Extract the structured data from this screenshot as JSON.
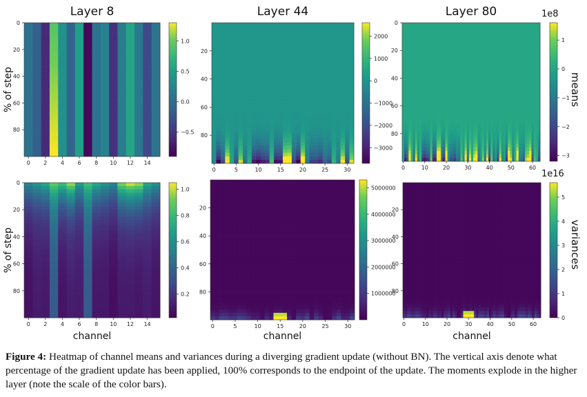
{
  "chart_data": [
    {
      "type": "heatmap",
      "title": "Layer 8",
      "xlabel": "",
      "ylabel": "% of step",
      "row_label": "",
      "channels": 16,
      "xticks": [
        0,
        2,
        4,
        6,
        8,
        10,
        12,
        14
      ],
      "yticks": [
        0,
        20,
        40,
        60,
        80
      ],
      "colorbar": {
        "ticks": [
          -0.5,
          0.0,
          0.5,
          1.0
        ],
        "labels": [
          "−0.5",
          "0.0",
          "0.5",
          "1.0"
        ],
        "range": [
          -0.9,
          1.3
        ],
        "scale_label": ""
      },
      "channel_values": [
        0.05,
        -0.15,
        -0.6,
        1.3,
        0.35,
        -0.1,
        0.5,
        -0.85,
        0.05,
        0.2,
        -0.55,
        0.15,
        0.55,
        0.1,
        -0.35,
        0.05
      ],
      "pattern": "constant-over-step"
    },
    {
      "type": "heatmap",
      "title": "Layer 44",
      "xlabel": "",
      "ylabel": "",
      "row_label": "",
      "channels": 32,
      "xticks": [
        0,
        5,
        10,
        15,
        20,
        25,
        30
      ],
      "yticks": [
        20,
        40,
        60,
        80
      ],
      "colorbar": {
        "ticks": [
          -3000,
          -2000,
          -1000,
          0,
          1000,
          2000
        ],
        "labels": [
          "−3000",
          "−2000",
          "−1000",
          "0",
          "1000",
          "2000"
        ],
        "range": [
          -3700,
          2600
        ],
        "scale_label": ""
      },
      "pattern": "near-zero-then-diverging-at-end"
    },
    {
      "type": "heatmap",
      "title": "Layer 80",
      "xlabel": "",
      "ylabel": "",
      "row_label": "means",
      "channels": 64,
      "xticks": [
        0,
        10,
        20,
        30,
        40,
        50,
        60
      ],
      "yticks": [
        0,
        20,
        40,
        60,
        80
      ],
      "colorbar": {
        "ticks": [
          -3,
          -2,
          -1,
          0,
          1
        ],
        "labels": [
          "−3",
          "−2",
          "−1",
          "0",
          "1"
        ],
        "range": [
          -3.2,
          1.6
        ],
        "scale_label": "1e8"
      },
      "pattern": "near-zero-then-diverging-at-end"
    },
    {
      "type": "heatmap",
      "title": "",
      "xlabel": "channel",
      "ylabel": "% of step",
      "row_label": "",
      "channels": 16,
      "xticks": [
        0,
        2,
        4,
        6,
        8,
        10,
        12,
        14
      ],
      "yticks": [
        0,
        20,
        40,
        60,
        80
      ],
      "colorbar": {
        "ticks": [
          0.2,
          0.4,
          0.6,
          0.8,
          1.0
        ],
        "labels": [
          "0.2",
          "0.4",
          "0.6",
          "0.8",
          "1.0"
        ],
        "range": [
          0.02,
          1.05
        ],
        "scale_label": ""
      },
      "channel_values": [
        0.55,
        0.62,
        0.7,
        0.88,
        0.8,
        0.95,
        0.65,
        0.82,
        0.7,
        0.62,
        0.55,
        0.92,
        1.0,
        0.95,
        0.7,
        0.6
      ],
      "pattern": "decaying-over-step"
    },
    {
      "type": "heatmap",
      "title": "",
      "xlabel": "channel",
      "ylabel": "",
      "row_label": "",
      "channels": 32,
      "xticks": [
        0,
        5,
        10,
        15,
        20,
        25,
        30
      ],
      "yticks": [
        20,
        40,
        60,
        80
      ],
      "colorbar": {
        "ticks": [
          1000000,
          2000000,
          3000000,
          4000000,
          5000000
        ],
        "labels": [
          "1000000",
          "2000000",
          "3000000",
          "4000000",
          "5000000"
        ],
        "range": [
          0,
          5300000
        ],
        "scale_label": ""
      },
      "pattern": "zero-then-spike-at-end"
    },
    {
      "type": "heatmap",
      "title": "",
      "xlabel": "channel",
      "ylabel": "",
      "row_label": "variances",
      "channels": 64,
      "xticks": [
        0,
        10,
        20,
        30,
        40,
        50,
        60
      ],
      "yticks": [
        20,
        40,
        60,
        80
      ],
      "colorbar": {
        "ticks": [
          0,
          1,
          2,
          3,
          4,
          5
        ],
        "labels": [
          "0",
          "1",
          "2",
          "3",
          "4",
          "5"
        ],
        "range": [
          0,
          5.6
        ],
        "scale_label": "1e16"
      },
      "pattern": "zero-then-spike-at-end"
    }
  ],
  "caption": {
    "label": "Figure 4:",
    "text": "Heatmap of channel means and variances during a diverging gradient update (without BN). The vertical axis denote what percentage of the gradient update has been applied, 100% corresponds to the endpoint of the update. The moments explode in the higher layer (note the scale of the color bars)."
  }
}
